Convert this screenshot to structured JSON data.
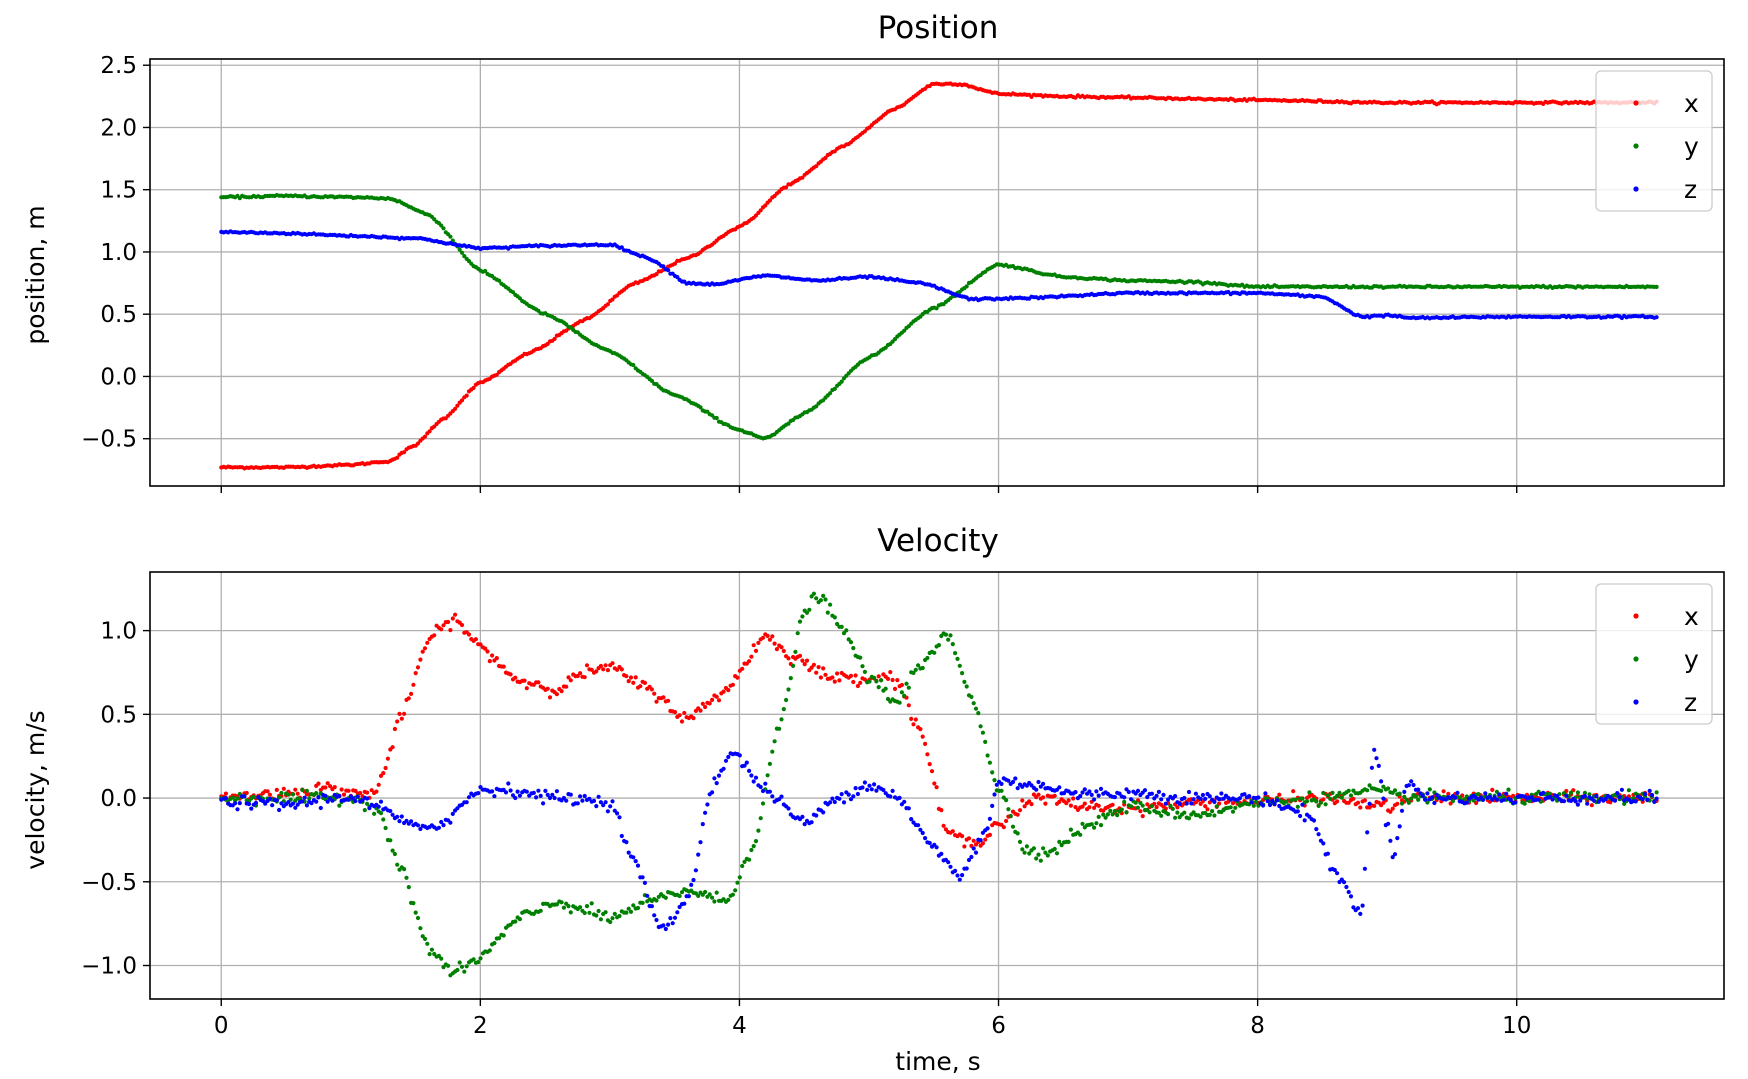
{
  "chart_data": [
    {
      "type": "scatter",
      "title": "Position",
      "xlabel": "",
      "ylabel": "position, m",
      "xlim": [
        -0.55,
        11.6
      ],
      "ylim": [
        -0.88,
        2.55
      ],
      "x_ticks": [
        0,
        2,
        4,
        6,
        8,
        10
      ],
      "x_tick_labels_visible": false,
      "y_ticks": [
        -0.5,
        0.0,
        0.5,
        1.0,
        1.5,
        2.0,
        2.5
      ],
      "y_tick_labels": [
        "−0.5",
        "0.0",
        "0.5",
        "1.0",
        "1.5",
        "2.0",
        "2.5"
      ],
      "grid": true,
      "legend_position": "top-right",
      "x_range": [
        0,
        11.08
      ],
      "series": [
        {
          "name": "x",
          "color": "#ff0000",
          "points": [
            [
              0,
              -0.73
            ],
            [
              0.5,
              -0.73
            ],
            [
              1.0,
              -0.71
            ],
            [
              1.3,
              -0.68
            ],
            [
              1.5,
              -0.55
            ],
            [
              1.7,
              -0.35
            ],
            [
              2.0,
              -0.05
            ],
            [
              2.4,
              0.2
            ],
            [
              2.8,
              0.45
            ],
            [
              3.2,
              0.75
            ],
            [
              3.6,
              0.95
            ],
            [
              4.0,
              1.2
            ],
            [
              4.4,
              1.55
            ],
            [
              4.8,
              1.85
            ],
            [
              5.2,
              2.15
            ],
            [
              5.5,
              2.35
            ],
            [
              5.7,
              2.35
            ],
            [
              6.0,
              2.27
            ],
            [
              6.5,
              2.25
            ],
            [
              7.0,
              2.24
            ],
            [
              8.0,
              2.22
            ],
            [
              9.0,
              2.2
            ],
            [
              10.0,
              2.2
            ],
            [
              11.08,
              2.2
            ]
          ]
        },
        {
          "name": "y",
          "color": "#008000",
          "points": [
            [
              0,
              1.44
            ],
            [
              0.5,
              1.45
            ],
            [
              1.0,
              1.44
            ],
            [
              1.3,
              1.43
            ],
            [
              1.6,
              1.3
            ],
            [
              2.0,
              0.85
            ],
            [
              2.5,
              0.5
            ],
            [
              3.0,
              0.2
            ],
            [
              3.5,
              -0.15
            ],
            [
              4.0,
              -0.43
            ],
            [
              4.2,
              -0.5
            ],
            [
              4.5,
              -0.3
            ],
            [
              5.0,
              0.15
            ],
            [
              5.5,
              0.55
            ],
            [
              6.0,
              0.9
            ],
            [
              6.5,
              0.8
            ],
            [
              7.0,
              0.77
            ],
            [
              7.5,
              0.76
            ],
            [
              8.0,
              0.72
            ],
            [
              9.0,
              0.72
            ],
            [
              10.0,
              0.72
            ],
            [
              11.08,
              0.72
            ]
          ]
        },
        {
          "name": "z",
          "color": "#0000ff",
          "points": [
            [
              0,
              1.16
            ],
            [
              0.5,
              1.15
            ],
            [
              1.0,
              1.13
            ],
            [
              1.5,
              1.11
            ],
            [
              2.0,
              1.03
            ],
            [
              2.5,
              1.05
            ],
            [
              3.0,
              1.06
            ],
            [
              3.3,
              0.95
            ],
            [
              3.6,
              0.75
            ],
            [
              3.8,
              0.74
            ],
            [
              4.2,
              0.81
            ],
            [
              4.6,
              0.77
            ],
            [
              5.0,
              0.8
            ],
            [
              5.4,
              0.75
            ],
            [
              5.8,
              0.62
            ],
            [
              6.2,
              0.63
            ],
            [
              7.0,
              0.67
            ],
            [
              8.0,
              0.67
            ],
            [
              8.5,
              0.64
            ],
            [
              8.8,
              0.48
            ],
            [
              9.0,
              0.49
            ],
            [
              9.2,
              0.47
            ],
            [
              10.0,
              0.48
            ],
            [
              11.08,
              0.48
            ]
          ]
        }
      ]
    },
    {
      "type": "scatter",
      "title": "Velocity",
      "xlabel": "time, s",
      "ylabel": "velocity, m/s",
      "xlim": [
        -0.55,
        11.6
      ],
      "ylim": [
        -1.2,
        1.35
      ],
      "x_ticks": [
        0,
        2,
        4,
        6,
        8,
        10
      ],
      "x_tick_labels": [
        "0",
        "2",
        "4",
        "6",
        "8",
        "10"
      ],
      "y_ticks": [
        -1.0,
        -0.5,
        0.0,
        0.5,
        1.0
      ],
      "y_tick_labels": [
        "−1.0",
        "−0.5",
        "0.0",
        "0.5",
        "1.0"
      ],
      "grid": true,
      "legend_position": "top-right",
      "x_range": [
        0,
        11.08
      ],
      "series": [
        {
          "name": "x",
          "color": "#ff0000",
          "points": [
            [
              0,
              0.0
            ],
            [
              0.5,
              0.03
            ],
            [
              0.8,
              0.06
            ],
            [
              1.1,
              0.02
            ],
            [
              1.2,
              0.05
            ],
            [
              1.4,
              0.5
            ],
            [
              1.6,
              0.95
            ],
            [
              1.8,
              1.07
            ],
            [
              2.0,
              0.9
            ],
            [
              2.3,
              0.7
            ],
            [
              2.6,
              0.65
            ],
            [
              2.8,
              0.75
            ],
            [
              3.0,
              0.78
            ],
            [
              3.3,
              0.65
            ],
            [
              3.6,
              0.47
            ],
            [
              3.9,
              0.65
            ],
            [
              4.2,
              0.97
            ],
            [
              4.4,
              0.85
            ],
            [
              4.7,
              0.72
            ],
            [
              5.0,
              0.72
            ],
            [
              5.2,
              0.72
            ],
            [
              5.4,
              0.4
            ],
            [
              5.6,
              -0.2
            ],
            [
              5.8,
              -0.28
            ],
            [
              6.0,
              -0.15
            ],
            [
              6.3,
              0.0
            ],
            [
              6.7,
              -0.05
            ],
            [
              7.0,
              -0.06
            ],
            [
              7.5,
              -0.03
            ],
            [
              8.0,
              -0.02
            ],
            [
              8.5,
              0.0
            ],
            [
              9.0,
              -0.05
            ],
            [
              9.2,
              0.0
            ],
            [
              10.0,
              0.0
            ],
            [
              11.08,
              0.0
            ]
          ]
        },
        {
          "name": "y",
          "color": "#008000",
          "points": [
            [
              0,
              0.0
            ],
            [
              0.5,
              0.0
            ],
            [
              1.0,
              0.0
            ],
            [
              1.2,
              -0.05
            ],
            [
              1.4,
              -0.45
            ],
            [
              1.6,
              -0.9
            ],
            [
              1.8,
              -1.05
            ],
            [
              2.0,
              -0.95
            ],
            [
              2.3,
              -0.72
            ],
            [
              2.6,
              -0.62
            ],
            [
              2.8,
              -0.67
            ],
            [
              3.0,
              -0.72
            ],
            [
              3.3,
              -0.62
            ],
            [
              3.6,
              -0.55
            ],
            [
              3.9,
              -0.62
            ],
            [
              4.1,
              -0.3
            ],
            [
              4.3,
              0.4
            ],
            [
              4.5,
              1.1
            ],
            [
              4.6,
              1.22
            ],
            [
              4.8,
              1.0
            ],
            [
              5.0,
              0.72
            ],
            [
              5.2,
              0.58
            ],
            [
              5.4,
              0.78
            ],
            [
              5.6,
              0.98
            ],
            [
              5.8,
              0.6
            ],
            [
              6.0,
              0.05
            ],
            [
              6.2,
              -0.3
            ],
            [
              6.4,
              -0.33
            ],
            [
              6.6,
              -0.2
            ],
            [
              7.0,
              -0.05
            ],
            [
              7.5,
              -0.1
            ],
            [
              8.0,
              -0.03
            ],
            [
              8.5,
              0.0
            ],
            [
              8.9,
              0.04
            ],
            [
              9.2,
              0.0
            ],
            [
              10.0,
              0.0
            ],
            [
              11.08,
              0.0
            ]
          ]
        },
        {
          "name": "z",
          "color": "#0000ff",
          "points": [
            [
              0,
              -0.02
            ],
            [
              0.5,
              -0.04
            ],
            [
              1.0,
              0.01
            ],
            [
              1.2,
              -0.05
            ],
            [
              1.5,
              -0.18
            ],
            [
              1.7,
              -0.15
            ],
            [
              2.0,
              0.05
            ],
            [
              2.2,
              0.05
            ],
            [
              2.6,
              0.0
            ],
            [
              3.0,
              -0.02
            ],
            [
              3.2,
              -0.4
            ],
            [
              3.4,
              -0.8
            ],
            [
              3.6,
              -0.6
            ],
            [
              3.8,
              0.1
            ],
            [
              3.95,
              0.27
            ],
            [
              4.2,
              0.05
            ],
            [
              4.5,
              -0.15
            ],
            [
              4.8,
              0.02
            ],
            [
              5.0,
              0.08
            ],
            [
              5.2,
              0.02
            ],
            [
              5.5,
              -0.3
            ],
            [
              5.7,
              -0.47
            ],
            [
              5.9,
              -0.2
            ],
            [
              6.0,
              0.1
            ],
            [
              6.3,
              0.08
            ],
            [
              6.6,
              0.02
            ],
            [
              7.0,
              0.03
            ],
            [
              7.5,
              0.0
            ],
            [
              8.0,
              0.0
            ],
            [
              8.4,
              -0.1
            ],
            [
              8.6,
              -0.45
            ],
            [
              8.8,
              -0.68
            ],
            [
              8.9,
              0.3
            ],
            [
              9.05,
              -0.35
            ],
            [
              9.15,
              0.1
            ],
            [
              9.3,
              0.0
            ],
            [
              10.0,
              0.0
            ],
            [
              11.08,
              0.0
            ]
          ]
        }
      ]
    }
  ]
}
